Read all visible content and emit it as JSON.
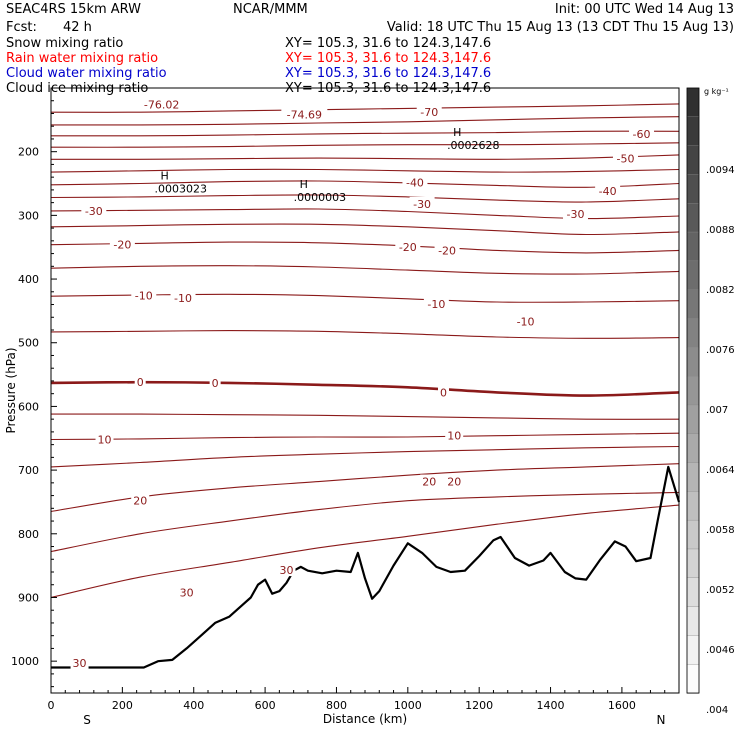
{
  "header": {
    "model": "SEAC4RS 15km ARW",
    "org": "NCAR/MMM",
    "init": "Init: 00 UTC Wed 14 Aug 13",
    "fcst_label": "Fcst:",
    "fcst_value": "42 h",
    "valid": "Valid: 18 UTC Thu 15 Aug 13 (13 CDT Thu 15 Aug 13)"
  },
  "fields": [
    {
      "name": "Snow mixing ratio",
      "xy": "XY= 105.3, 31.6 to 124.3,147.6",
      "color": "#000000"
    },
    {
      "name": "Rain water mixing ratio",
      "xy": "XY= 105.3, 31.6 to 124.3,147.6",
      "color": "#ff0000"
    },
    {
      "name": "Cloud water mixing ratio",
      "xy": "XY= 105.3, 31.6 to 124.3,147.6",
      "color": "#0000cc"
    },
    {
      "name": "Cloud ice mixing ratio",
      "xy": "XY= 105.3, 31.6 to 124.3,147.6",
      "color": "#000000"
    }
  ],
  "chart_data": {
    "type": "line",
    "title": "",
    "xlabel": "Distance (km)",
    "ylabel": "Pressure (hPa)",
    "xlim": [
      0,
      1760
    ],
    "ylim": [
      1050,
      100
    ],
    "x_ticks": [
      0,
      200,
      400,
      600,
      800,
      1000,
      1200,
      1400,
      1600
    ],
    "y_ticks": [
      200,
      300,
      400,
      500,
      600,
      700,
      800,
      900,
      1000
    ],
    "x_end_labels": [
      "S",
      "N"
    ],
    "temperature_contours": {
      "color": "#8b1a1a",
      "levels": [
        {
          "level": -70,
          "p": [
            138,
            138,
            136,
            134,
            132,
            130,
            128,
            125
          ]
        },
        {
          "level": -65,
          "p": [
            158,
            158,
            157,
            155,
            153,
            150,
            147,
            145
          ]
        },
        {
          "level": -60,
          "p": [
            175,
            175,
            174,
            172,
            171,
            170,
            168,
            168
          ]
        },
        {
          "level": -55,
          "p": [
            193,
            193,
            192,
            190,
            189,
            189,
            188,
            186
          ]
        },
        {
          "level": -50,
          "p": [
            212,
            212,
            211,
            210,
            211,
            212,
            210,
            205
          ]
        },
        {
          "level": -45,
          "p": [
            232,
            230,
            228,
            228,
            230,
            232,
            231,
            228
          ]
        },
        {
          "level": -40,
          "p": [
            252,
            250,
            247,
            246,
            249,
            253,
            256,
            250
          ]
        },
        {
          "level": -35,
          "p": [
            272,
            271,
            269,
            268,
            271,
            276,
            279,
            274
          ]
        },
        {
          "level": -30,
          "p": [
            293,
            292,
            291,
            290,
            294,
            300,
            305,
            301
          ]
        },
        {
          "level": -25,
          "p": [
            318,
            316,
            314,
            314,
            318,
            324,
            330,
            326
          ]
        },
        {
          "level": -20,
          "p": [
            346,
            344,
            342,
            343,
            348,
            355,
            359,
            355
          ]
        },
        {
          "level": -15,
          "p": [
            383,
            380,
            379,
            381,
            386,
            391,
            392,
            388
          ]
        },
        {
          "level": -10,
          "p": [
            427,
            425,
            424,
            426,
            431,
            436,
            436,
            434
          ]
        },
        {
          "level": -5,
          "p": [
            483,
            482,
            481,
            482,
            486,
            491,
            493,
            492
          ]
        },
        {
          "level": 0,
          "p": [
            563,
            562,
            563,
            566,
            570,
            578,
            583,
            578
          ]
        },
        {
          "level": 5,
          "p": [
            612,
            612,
            613,
            614,
            616,
            618,
            620,
            620
          ]
        },
        {
          "level": 10,
          "p": [
            652,
            651,
            649,
            648,
            648,
            646,
            644,
            642
          ]
        },
        {
          "level": 15,
          "p": [
            695,
            688,
            680,
            675,
            671,
            668,
            665,
            663
          ]
        },
        {
          "level": 20,
          "p": [
            765,
            742,
            728,
            718,
            708,
            700,
            695,
            690
          ]
        },
        {
          "level": 25,
          "p": [
            828,
            800,
            780,
            762,
            748,
            742,
            738,
            735
          ]
        },
        {
          "level": 30,
          "p": [
            900,
            868,
            845,
            822,
            804,
            785,
            768,
            755
          ]
        }
      ],
      "x": [
        0,
        250,
        500,
        750,
        1000,
        1250,
        1500,
        1760
      ]
    },
    "contour_labels": [
      {
        "text": "-76.02",
        "x": 310,
        "p": 126
      },
      {
        "text": "-74.69",
        "x": 710,
        "p": 142
      },
      {
        "text": "-70",
        "x": 1060,
        "p": 138
      },
      {
        "text": "-60",
        "x": 1655,
        "p": 172
      },
      {
        "text": "-50",
        "x": 1610,
        "p": 211
      },
      {
        "text": "-40",
        "x": 1020,
        "p": 248
      },
      {
        "text": "-40",
        "x": 1560,
        "p": 262
      },
      {
        "text": "-30",
        "x": 1040,
        "p": 282
      },
      {
        "text": "-30",
        "x": 1470,
        "p": 298
      },
      {
        "text": "-30",
        "x": 120,
        "p": 293
      },
      {
        "text": "-20",
        "x": 200,
        "p": 346
      },
      {
        "text": "-20",
        "x": 1000,
        "p": 350
      },
      {
        "text": "-20",
        "x": 1110,
        "p": 355
      },
      {
        "text": "-10",
        "x": 260,
        "p": 426
      },
      {
        "text": "-10",
        "x": 370,
        "p": 430
      },
      {
        "text": "-10",
        "x": 1080,
        "p": 439
      },
      {
        "text": "-10",
        "x": 1330,
        "p": 467
      },
      {
        "text": "0",
        "x": 250,
        "p": 562
      },
      {
        "text": "0",
        "x": 460,
        "p": 563
      },
      {
        "text": "0",
        "x": 1100,
        "p": 578
      },
      {
        "text": "10",
        "x": 150,
        "p": 652
      },
      {
        "text": "10",
        "x": 1130,
        "p": 646
      },
      {
        "text": "20",
        "x": 250,
        "p": 748
      },
      {
        "text": "20",
        "x": 1060,
        "p": 718
      },
      {
        "text": "20",
        "x": 1130,
        "p": 718
      },
      {
        "text": "30",
        "x": 380,
        "p": 892
      },
      {
        "text": "30",
        "x": 660,
        "p": 857
      },
      {
        "text": "30",
        "x": 80,
        "p": 1003
      }
    ],
    "high_markers": [
      {
        "label": "H",
        "value": ".0003023",
        "x": 290,
        "p": 248
      },
      {
        "label": "H",
        "value": ".0000003",
        "x": 680,
        "p": 262
      },
      {
        "label": "H",
        "value": ".0002628",
        "x": 1110,
        "p": 180
      }
    ],
    "terrain": {
      "x": [
        0,
        220,
        260,
        300,
        340,
        380,
        420,
        460,
        500,
        540,
        560,
        580,
        600,
        620,
        640,
        660,
        680,
        700,
        720,
        760,
        800,
        840,
        860,
        880,
        900,
        920,
        960,
        1000,
        1040,
        1080,
        1120,
        1160,
        1200,
        1240,
        1260,
        1300,
        1340,
        1380,
        1400,
        1440,
        1470,
        1500,
        1540,
        1580,
        1610,
        1640,
        1680,
        1700,
        1730,
        1760
      ],
      "p": [
        1010,
        1010,
        1010,
        1000,
        998,
        980,
        960,
        940,
        930,
        910,
        900,
        880,
        872,
        894,
        890,
        877,
        858,
        852,
        858,
        862,
        858,
        860,
        830,
        870,
        902,
        890,
        850,
        815,
        830,
        852,
        860,
        858,
        835,
        810,
        805,
        838,
        850,
        842,
        830,
        860,
        870,
        872,
        840,
        812,
        820,
        843,
        838,
        780,
        695,
        750
      ]
    },
    "colorbar": {
      "unit": "g kg⁻¹",
      "ticks": [
        ".0094",
        ".0088",
        ".0082",
        ".0076",
        ".007",
        ".0064",
        ".0058",
        ".0052",
        ".0046",
        ".004"
      ]
    }
  }
}
